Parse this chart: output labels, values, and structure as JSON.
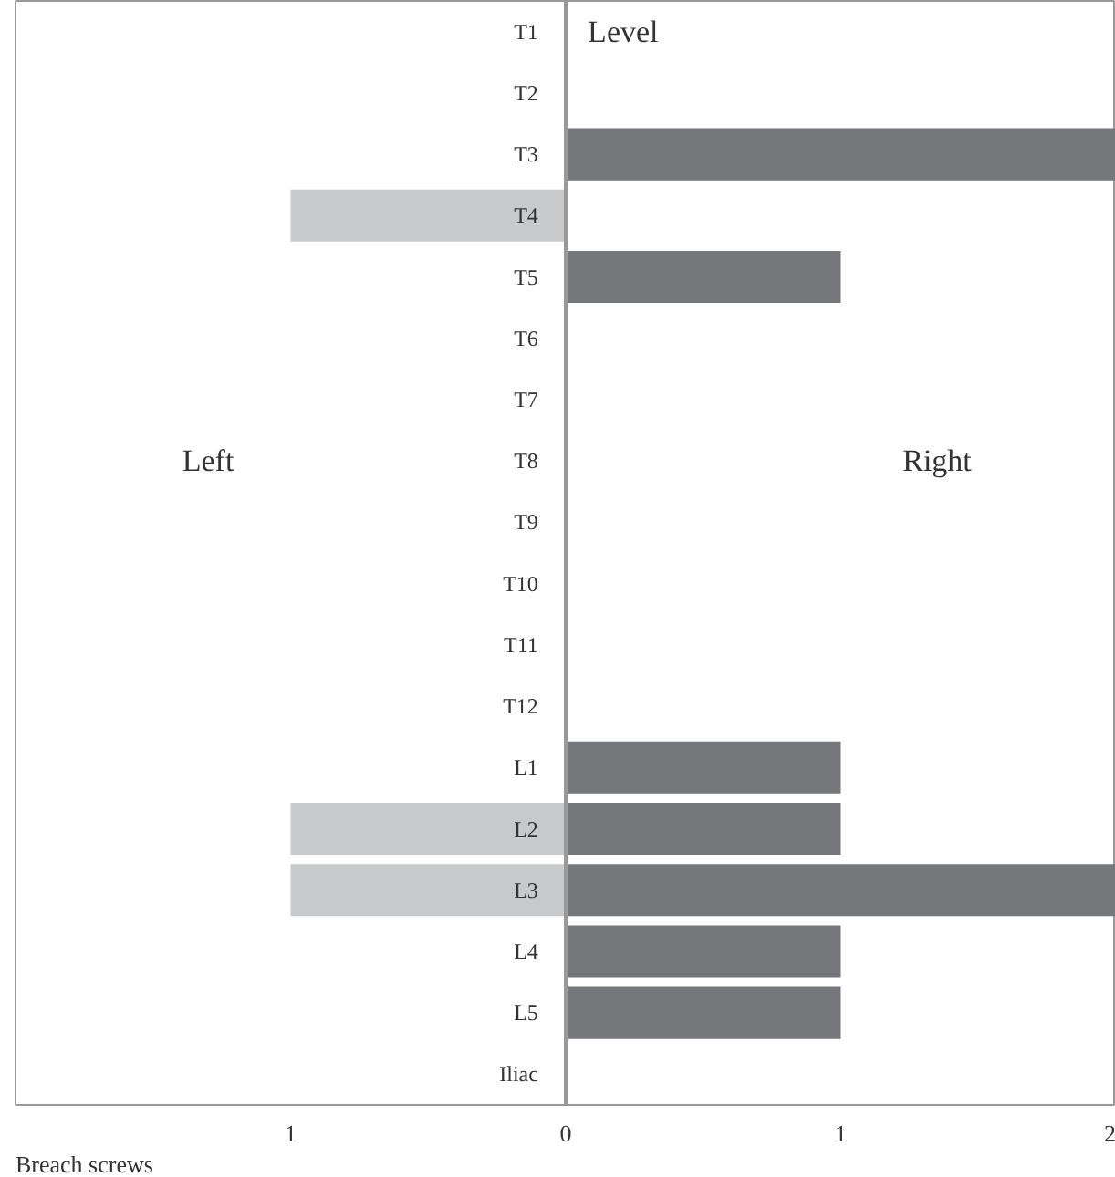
{
  "chart_data": {
    "type": "bar",
    "orientation": "horizontal",
    "ylabel": "Level",
    "xlabel": "Breach screws",
    "categories": [
      "T1",
      "T2",
      "T3",
      "T4",
      "T5",
      "T6",
      "T7",
      "T8",
      "T9",
      "T10",
      "T11",
      "T12",
      "L1",
      "L2",
      "L3",
      "L4",
      "L5",
      "Iliac"
    ],
    "series": [
      {
        "color": "#c8c9cb",
        "values": [
          null,
          null,
          null,
          -1,
          null,
          null,
          null,
          null,
          null,
          null,
          null,
          null,
          null,
          -1,
          -1,
          null,
          null,
          null
        ]
      },
      {
        "color": "#76777a",
        "values": [
          null,
          null,
          2,
          null,
          1,
          null,
          null,
          null,
          null,
          null,
          null,
          null,
          1,
          1,
          2,
          1,
          1,
          null
        ]
      }
    ],
    "xlim": [
      -2,
      2
    ],
    "xticks": [
      {
        "value": -1,
        "label": "1"
      },
      0,
      1,
      2
    ],
    "annotations": [
      "Left",
      "Right"
    ],
    "grid": false
  }
}
